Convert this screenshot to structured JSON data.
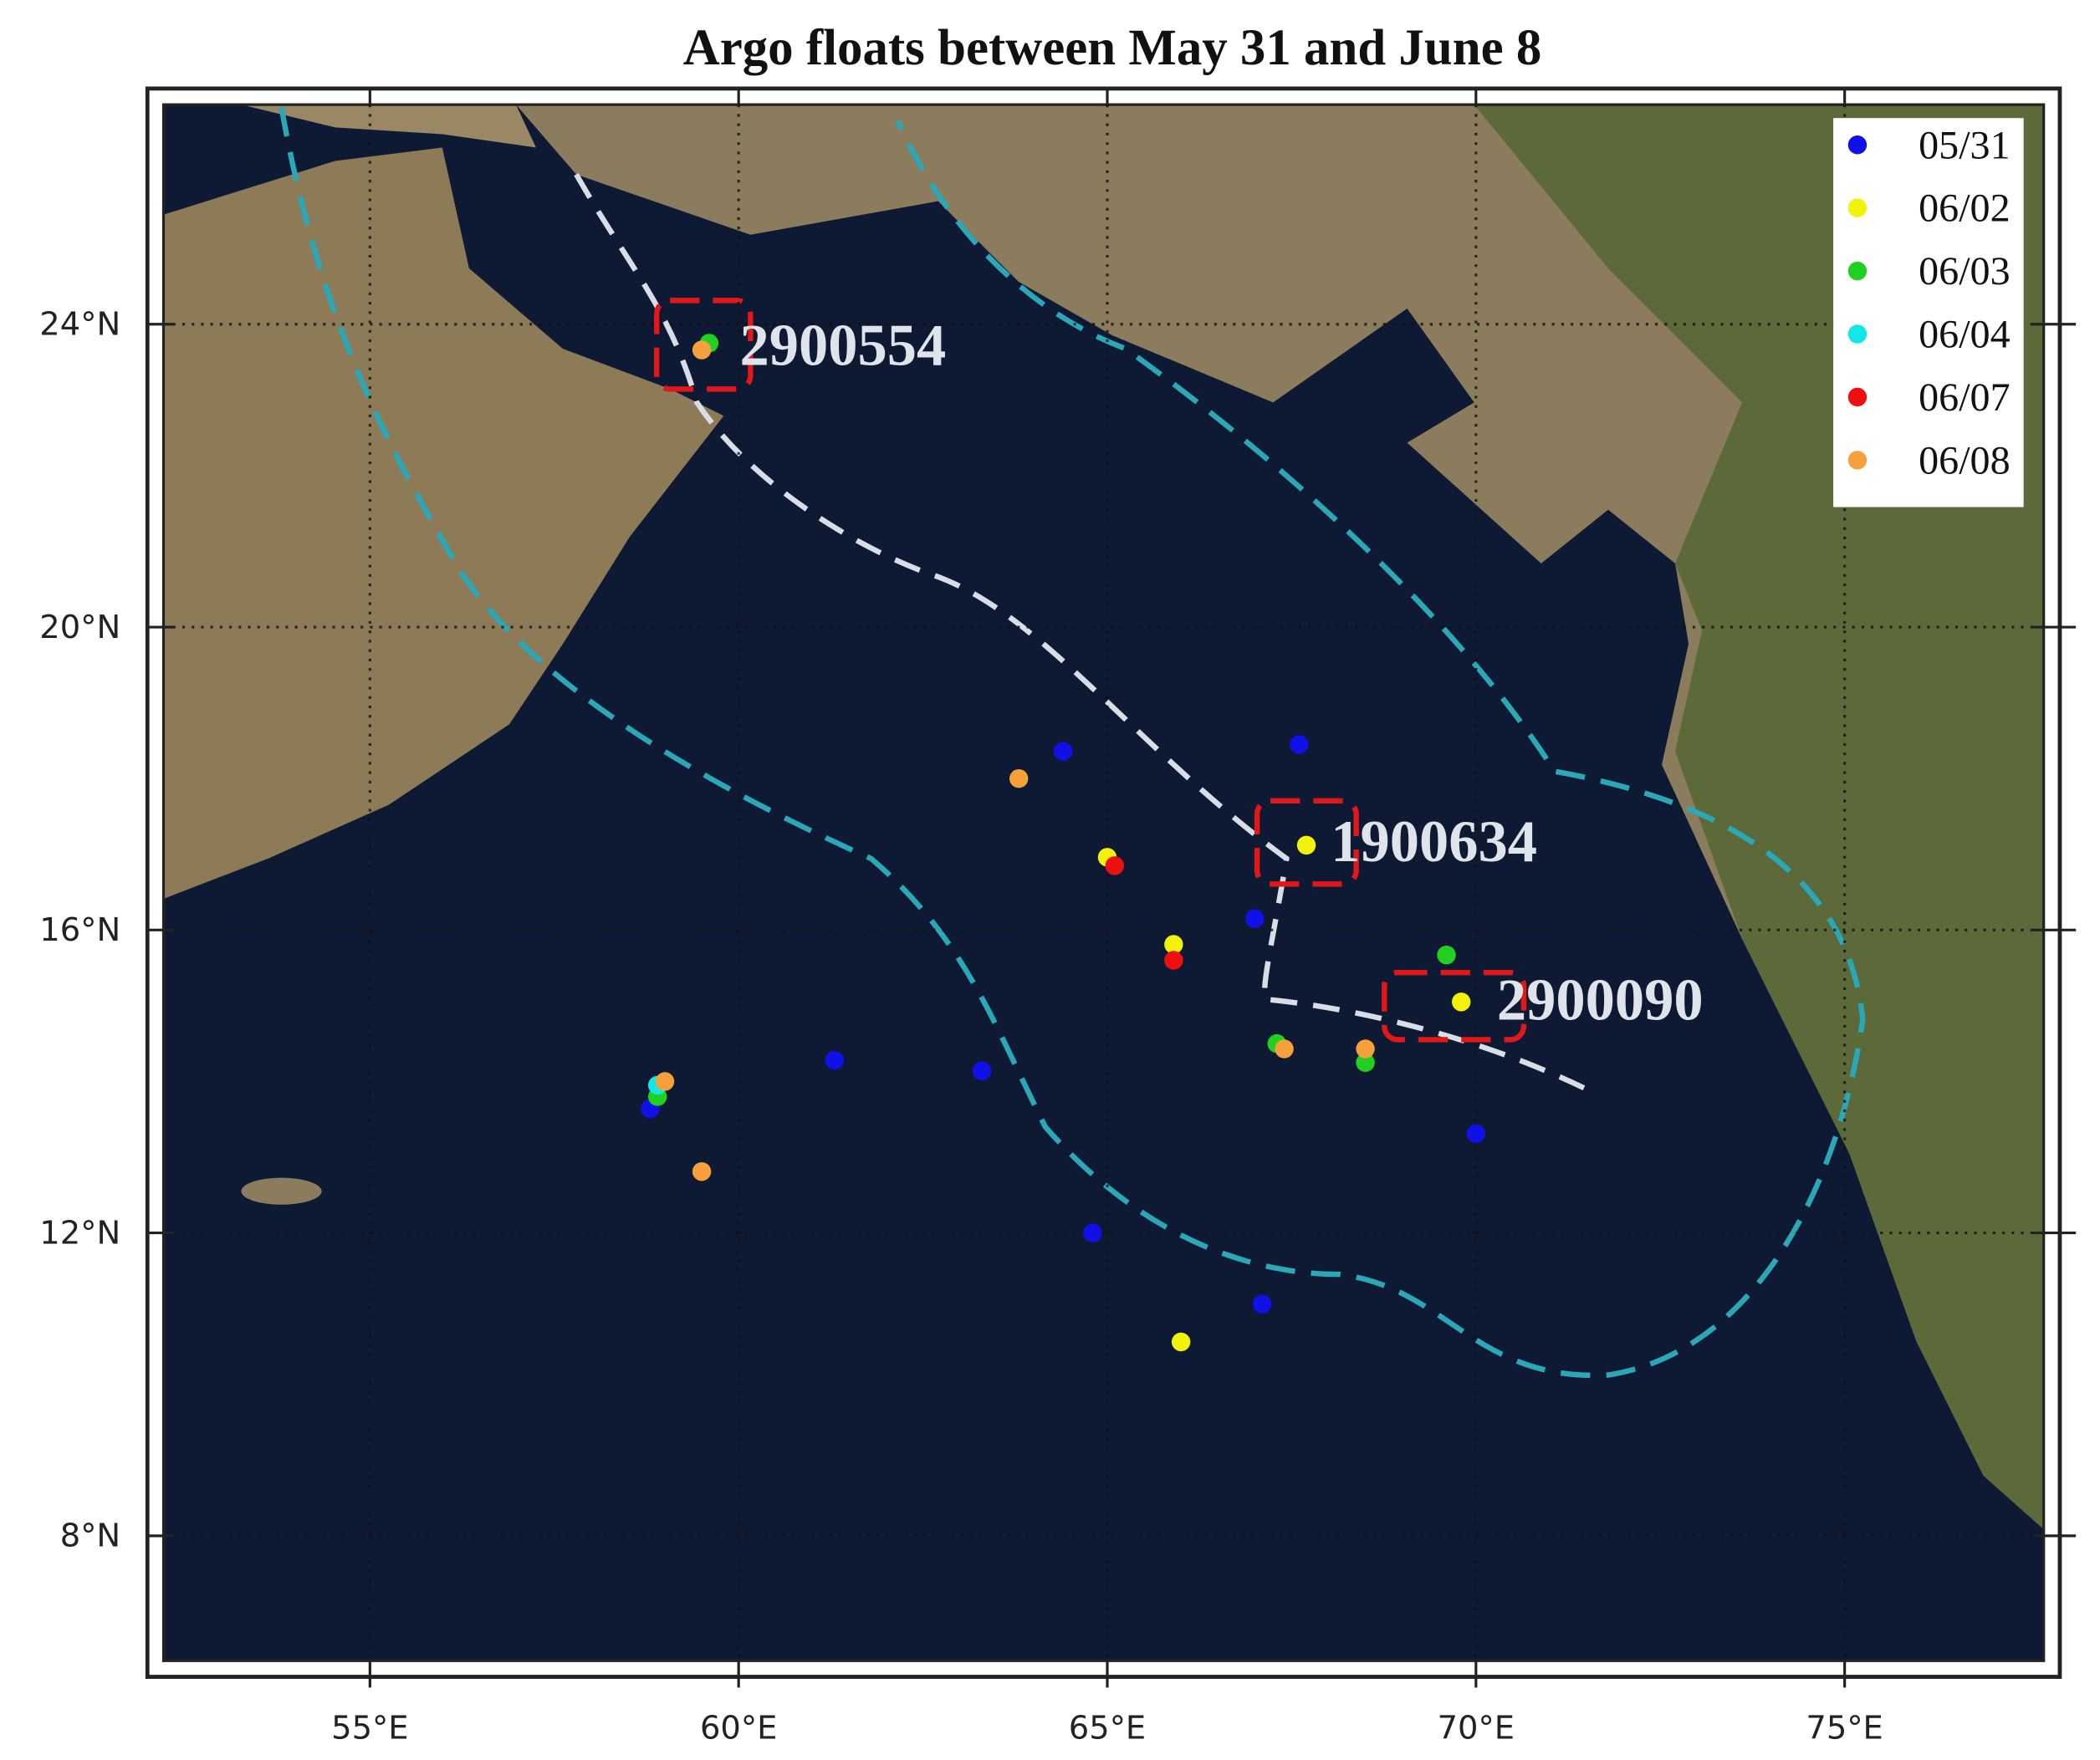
{
  "chart_data": {
    "type": "scatter",
    "title": "Argo floats between May 31 and June 8",
    "xlim": [
      52.2,
      77.7
    ],
    "ylim": [
      6.35,
      26.9
    ],
    "xticks": [
      {
        "value": 55,
        "label": "55°E"
      },
      {
        "value": 60,
        "label": "60°E"
      },
      {
        "value": 65,
        "label": "65°E"
      },
      {
        "value": 70,
        "label": "70°E"
      },
      {
        "value": 75,
        "label": "75°E"
      }
    ],
    "yticks": [
      {
        "value": 8,
        "label": "8°N"
      },
      {
        "value": 12,
        "label": "12°N"
      },
      {
        "value": 16,
        "label": "16°N"
      },
      {
        "value": 20,
        "label": "20°N"
      },
      {
        "value": 24,
        "label": "24°N"
      }
    ],
    "grid": true,
    "legend": "upper right",
    "series": [
      {
        "name": "05/31",
        "color": "#1010e8",
        "x": [
          64.4,
          67.6,
          67.0,
          61.3,
          63.3,
          58.8,
          70.0,
          64.8,
          67.1
        ],
        "values": [
          18.36,
          18.45,
          16.15,
          14.28,
          14.14,
          13.64,
          13.31,
          12.0,
          11.06
        ]
      },
      {
        "name": "06/02",
        "color": "#f2f20a",
        "x": [
          67.7,
          69.8,
          65.9,
          65.0,
          66.0
        ],
        "values": [
          17.12,
          15.05,
          15.81,
          16.96,
          10.56
        ]
      },
      {
        "name": "06/03",
        "color": "#22d022",
        "x": [
          59.6,
          69.6,
          67.3,
          68.5,
          58.9
        ],
        "values": [
          23.75,
          15.67,
          14.5,
          14.25,
          13.8
        ]
      },
      {
        "name": "06/04",
        "color": "#10e8e8",
        "x": [
          58.9
        ],
        "values": [
          13.95
        ]
      },
      {
        "name": "06/07",
        "color": "#ee1010",
        "x": [
          65.1,
          65.9
        ],
        "values": [
          16.85,
          15.6
        ]
      },
      {
        "name": "06/08",
        "color": "#f5a03a",
        "x": [
          59.5,
          63.8,
          67.4,
          68.5,
          59.0,
          59.5
        ],
        "values": [
          23.66,
          18.0,
          14.43,
          14.43,
          14.0,
          12.81
        ]
      }
    ],
    "annotations": [
      "2900554",
      "1900634",
      "2900090"
    ]
  }
}
